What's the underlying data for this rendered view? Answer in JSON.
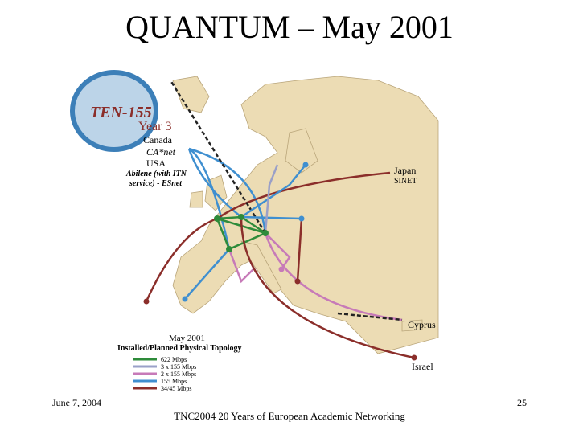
{
  "slide": {
    "title": "QUANTUM – May 2001",
    "map": {
      "logo": "TEN-155",
      "year": "Year 3",
      "labels": {
        "canada": "Canada",
        "canet": "CA*net",
        "usa": "USA",
        "abilene_line1": "Abilene (with ITN",
        "abilene_line2": "service) - ESnet",
        "japan": "Japan",
        "sinet": "SINET",
        "cyprus": "Cyprus",
        "israel": "Israel"
      },
      "legend": {
        "date": "May 2001",
        "caption": "Installed/Planned Physical Topology",
        "items": [
          {
            "label": "622 Mbps",
            "color": "#2e8b3a"
          },
          {
            "label": "3 x 155 Mbps",
            "color": "#9aa0c8"
          },
          {
            "label": "2 x 155 Mbps",
            "color": "#c77ab8"
          },
          {
            "label": "155 Mbps",
            "color": "#3f8fd0"
          },
          {
            "label": "34/45 Mbps",
            "color": "#8b2e2a"
          }
        ]
      }
    },
    "footer": {
      "date": "June 7, 2004",
      "text": "TNC2004 20 Years of European Academic Networking",
      "page": "25"
    }
  }
}
